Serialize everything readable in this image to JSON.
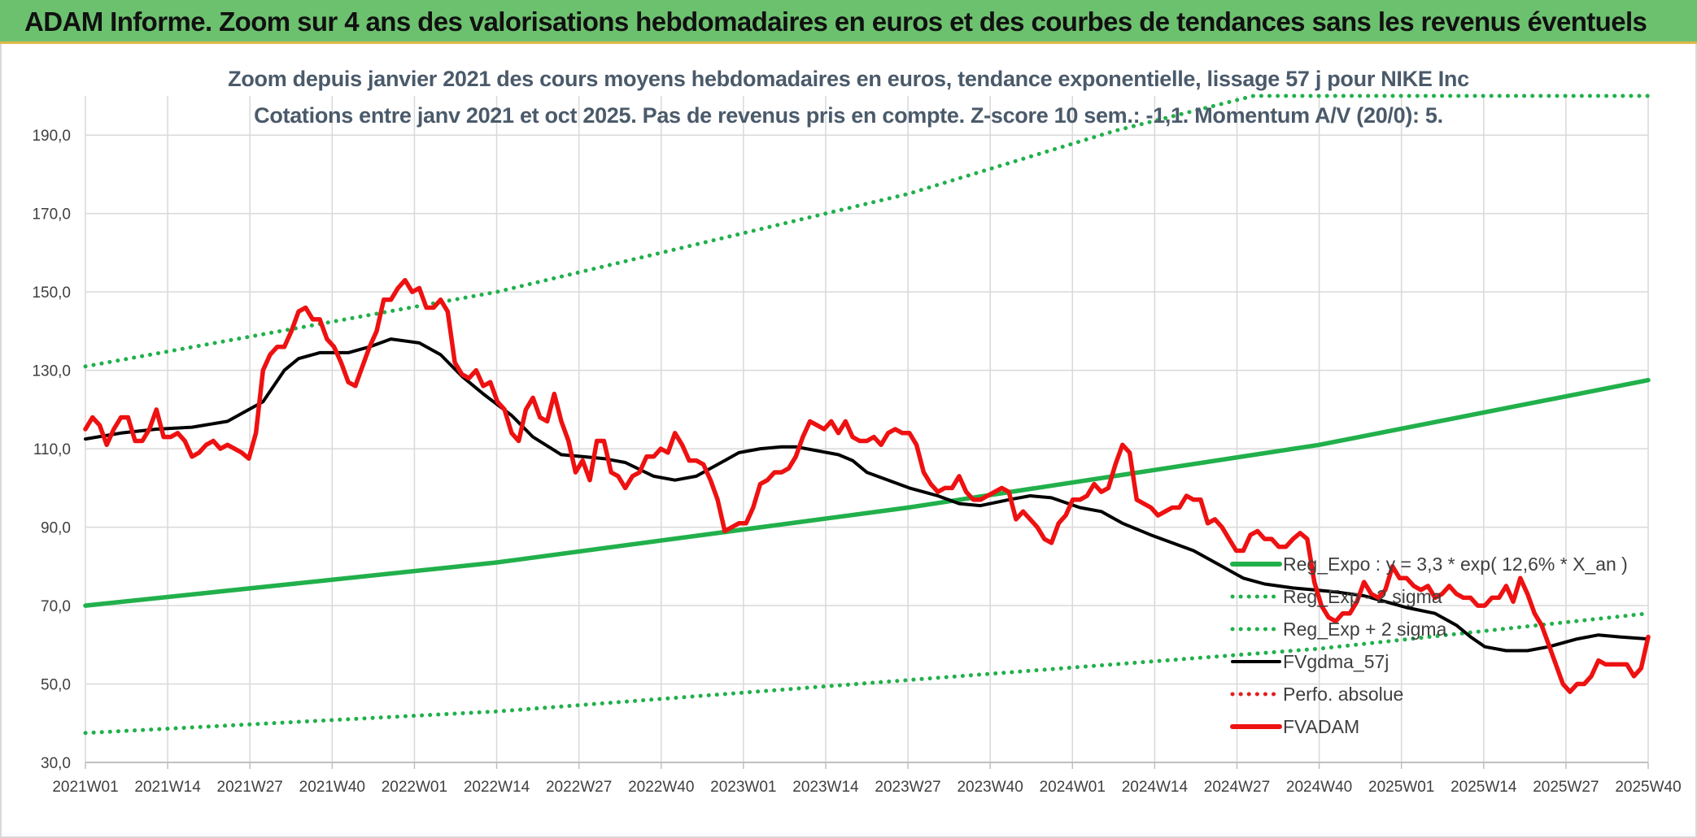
{
  "header": {
    "title": "ADAM Informe. Zoom sur 4 ans des valorisations hebdomadaires en euros et des courbes de tendances sans les revenus éventuels"
  },
  "chart_data": {
    "type": "line",
    "title_line1": "Zoom depuis janvier 2021 des cours moyens hebdomadaires en euros, tendance exponentielle, lissage 57 j pour NIKE Inc",
    "title_line2": "Cotations entre janv 2021 et oct 2025. Pas de revenus pris en compte. Z-score 10 sem.: -1,1. Momentum A/V (20/0): 5.",
    "ylim": [
      30,
      200
    ],
    "y_ticks": [
      "30,0",
      "50,0",
      "70,0",
      "90,0",
      "110,0",
      "130,0",
      "150,0",
      "170,0",
      "190,0"
    ],
    "y_tick_values": [
      30,
      50,
      70,
      90,
      110,
      130,
      150,
      170,
      190
    ],
    "categories": [
      "2021W01",
      "2021W14",
      "2021W27",
      "2021W40",
      "2022W01",
      "2022W14",
      "2022W27",
      "2022W40",
      "2023W01",
      "2023W14",
      "2023W27",
      "2023W40",
      "2024W01",
      "2024W14",
      "2024W27",
      "2024W40",
      "2025W01",
      "2025W14",
      "2025W27",
      "2025W40"
    ],
    "grid": true,
    "legend_position": "center-right",
    "colors": {
      "reg": "#21b04b",
      "fvgdma": "#000000",
      "perfo": "#e32020",
      "fvadam": "#ee1111",
      "grid": "#d9d9d9",
      "axis": "#bfbfbf"
    },
    "series": [
      {
        "name": "Reg_Expo : y = 3,3 * exp( 12,6% *  X_an )",
        "style": "solid-thick",
        "color": "#21b04b",
        "points": [
          [
            0,
            70
          ],
          [
            5,
            81
          ],
          [
            10,
            95
          ],
          [
            15,
            111
          ],
          [
            19,
            127.5
          ]
        ]
      },
      {
        "name": "Reg_Exp - 2 sigma",
        "style": "dotted",
        "color": "#21b04b",
        "points": [
          [
            0,
            37.5
          ],
          [
            5,
            43
          ],
          [
            10,
            51
          ],
          [
            15,
            59
          ],
          [
            19,
            68
          ]
        ]
      },
      {
        "name": "Reg_Exp + 2 sigma",
        "style": "dotted",
        "color": "#21b04b",
        "points": [
          [
            0,
            131
          ],
          [
            5,
            150
          ],
          [
            10,
            175
          ],
          [
            12.5,
            191
          ],
          [
            14.2,
            200
          ],
          [
            19,
            200
          ]
        ]
      },
      {
        "name": "FVgdma_57j",
        "style": "solid",
        "color": "#000000",
        "points": [
          [
            0,
            112.5
          ],
          [
            0.5,
            114
          ],
          [
            1,
            115
          ],
          [
            1.5,
            115.5
          ],
          [
            2,
            117
          ],
          [
            2.5,
            122
          ],
          [
            2.8,
            130
          ],
          [
            3,
            133
          ],
          [
            3.3,
            134.5
          ],
          [
            3.7,
            134.5
          ],
          [
            4,
            136
          ],
          [
            4.3,
            138
          ],
          [
            4.7,
            137
          ],
          [
            5,
            134
          ],
          [
            5.3,
            128.5
          ],
          [
            5.6,
            124
          ],
          [
            6,
            118.5
          ],
          [
            6.3,
            113
          ],
          [
            6.7,
            108.5
          ],
          [
            7,
            108
          ],
          [
            7.3,
            107.5
          ],
          [
            7.6,
            106.5
          ],
          [
            8,
            103
          ],
          [
            8.3,
            102
          ],
          [
            8.6,
            103
          ],
          [
            9,
            107
          ],
          [
            9.2,
            109
          ],
          [
            9.5,
            110
          ],
          [
            9.8,
            110.5
          ],
          [
            10,
            110.5
          ],
          [
            10.3,
            109.5
          ],
          [
            10.6,
            108.5
          ],
          [
            10.8,
            107
          ],
          [
            11,
            104
          ],
          [
            11.3,
            102
          ],
          [
            11.6,
            100
          ],
          [
            12,
            98
          ],
          [
            12.3,
            96
          ],
          [
            12.6,
            95.5
          ],
          [
            13,
            97
          ],
          [
            13.3,
            98
          ],
          [
            13.6,
            97.5
          ],
          [
            14,
            95
          ],
          [
            14.3,
            94
          ],
          [
            14.6,
            91
          ],
          [
            15,
            88
          ],
          [
            15.3,
            86
          ],
          [
            15.6,
            84
          ],
          [
            16,
            80
          ],
          [
            16.3,
            77
          ],
          [
            16.6,
            75.5
          ],
          [
            17,
            74.5
          ],
          [
            17.3,
            74
          ],
          [
            17.6,
            73.5
          ],
          [
            18,
            72.5
          ],
          [
            18.3,
            71
          ],
          [
            18.6,
            69.5
          ],
          [
            19,
            68
          ],
          [
            19.3,
            65
          ],
          [
            19.5,
            62
          ],
          [
            19.7,
            59.5
          ],
          [
            20,
            58.5
          ],
          [
            20.3,
            58.5
          ],
          [
            20.6,
            59.5
          ],
          [
            21,
            61.5
          ],
          [
            21.3,
            62.5
          ],
          [
            21.6,
            62
          ],
          [
            22,
            61.5
          ]
        ]
      },
      {
        "name": "Perfo. absolue",
        "style": "dotted",
        "color": "#e32020",
        "points": []
      },
      {
        "name": "FVADAM",
        "style": "solid-thick",
        "color": "#ee1111",
        "points": [
          [
            0,
            115
          ],
          [
            0.1,
            118
          ],
          [
            0.2,
            116
          ],
          [
            0.3,
            111
          ],
          [
            0.4,
            115
          ],
          [
            0.5,
            118
          ],
          [
            0.6,
            118
          ],
          [
            0.7,
            112
          ],
          [
            0.8,
            112
          ],
          [
            0.9,
            115
          ],
          [
            1,
            120
          ],
          [
            1.1,
            113
          ],
          [
            1.2,
            113
          ],
          [
            1.3,
            114
          ],
          [
            1.4,
            112
          ],
          [
            1.5,
            108
          ],
          [
            1.6,
            109
          ],
          [
            1.7,
            111
          ],
          [
            1.8,
            112
          ],
          [
            1.9,
            110
          ],
          [
            2,
            111
          ],
          [
            2.1,
            110
          ],
          [
            2.2,
            109
          ],
          [
            2.3,
            107.5
          ],
          [
            2.4,
            114
          ],
          [
            2.5,
            130
          ],
          [
            2.6,
            134
          ],
          [
            2.7,
            136
          ],
          [
            2.8,
            136
          ],
          [
            2.9,
            140
          ],
          [
            3,
            145
          ],
          [
            3.1,
            146
          ],
          [
            3.2,
            143
          ],
          [
            3.3,
            143
          ],
          [
            3.4,
            138
          ],
          [
            3.5,
            136
          ],
          [
            3.6,
            132
          ],
          [
            3.7,
            127
          ],
          [
            3.8,
            126
          ],
          [
            3.9,
            131
          ],
          [
            4,
            136
          ],
          [
            4.1,
            140
          ],
          [
            4.2,
            148
          ],
          [
            4.3,
            148
          ],
          [
            4.4,
            151
          ],
          [
            4.5,
            153
          ],
          [
            4.6,
            150
          ],
          [
            4.7,
            151
          ],
          [
            4.8,
            146
          ],
          [
            4.9,
            146
          ],
          [
            5,
            148
          ],
          [
            5.1,
            145
          ],
          [
            5.2,
            132
          ],
          [
            5.3,
            129
          ],
          [
            5.4,
            128
          ],
          [
            5.5,
            130
          ],
          [
            5.6,
            126
          ],
          [
            5.7,
            127
          ],
          [
            5.8,
            122
          ],
          [
            5.9,
            120
          ],
          [
            6,
            114
          ],
          [
            6.1,
            112
          ],
          [
            6.2,
            120
          ],
          [
            6.3,
            123
          ],
          [
            6.4,
            118
          ],
          [
            6.5,
            117
          ],
          [
            6.6,
            124
          ],
          [
            6.7,
            117
          ],
          [
            6.8,
            112
          ],
          [
            6.9,
            104
          ],
          [
            7,
            107
          ],
          [
            7.1,
            102
          ],
          [
            7.2,
            112
          ],
          [
            7.3,
            112
          ],
          [
            7.4,
            104
          ],
          [
            7.5,
            103
          ],
          [
            7.6,
            100
          ],
          [
            7.7,
            103
          ],
          [
            7.8,
            104
          ],
          [
            7.9,
            108
          ],
          [
            8,
            108
          ],
          [
            8.1,
            110
          ],
          [
            8.2,
            109
          ],
          [
            8.3,
            114
          ],
          [
            8.4,
            111
          ],
          [
            8.5,
            107
          ],
          [
            8.6,
            107
          ],
          [
            8.7,
            106
          ],
          [
            8.8,
            102
          ],
          [
            8.9,
            97
          ],
          [
            9,
            89
          ],
          [
            9.1,
            90
          ],
          [
            9.2,
            91
          ],
          [
            9.3,
            91
          ],
          [
            9.4,
            95
          ],
          [
            9.5,
            101
          ],
          [
            9.6,
            102
          ],
          [
            9.7,
            104
          ],
          [
            9.8,
            104
          ],
          [
            9.9,
            105
          ],
          [
            10,
            108
          ],
          [
            10.1,
            113
          ],
          [
            10.2,
            117
          ],
          [
            10.3,
            116
          ],
          [
            10.4,
            115
          ],
          [
            10.5,
            117
          ],
          [
            10.6,
            114
          ],
          [
            10.7,
            117
          ],
          [
            10.8,
            113
          ],
          [
            10.9,
            112
          ],
          [
            11,
            112
          ],
          [
            11.1,
            113
          ],
          [
            11.2,
            111
          ],
          [
            11.3,
            114
          ],
          [
            11.4,
            115
          ],
          [
            11.5,
            114
          ],
          [
            11.6,
            114
          ],
          [
            11.7,
            111
          ],
          [
            11.8,
            104
          ],
          [
            11.9,
            101
          ],
          [
            12,
            99
          ],
          [
            12.1,
            100
          ],
          [
            12.2,
            100
          ],
          [
            12.3,
            103
          ],
          [
            12.4,
            99
          ],
          [
            12.5,
            97
          ],
          [
            12.6,
            97
          ],
          [
            12.7,
            98
          ],
          [
            12.8,
            99
          ],
          [
            12.9,
            100
          ],
          [
            13,
            99
          ],
          [
            13.1,
            92
          ],
          [
            13.2,
            94
          ],
          [
            13.3,
            92
          ],
          [
            13.4,
            90
          ],
          [
            13.5,
            87
          ],
          [
            13.6,
            86
          ],
          [
            13.7,
            91
          ],
          [
            13.8,
            93
          ],
          [
            13.9,
            97
          ],
          [
            14,
            97
          ],
          [
            14.1,
            98
          ],
          [
            14.2,
            101
          ],
          [
            14.3,
            99
          ],
          [
            14.4,
            100
          ],
          [
            14.5,
            106
          ],
          [
            14.6,
            111
          ],
          [
            14.7,
            109
          ],
          [
            14.8,
            97
          ],
          [
            14.9,
            96
          ],
          [
            15,
            95
          ],
          [
            15.1,
            93
          ],
          [
            15.2,
            94
          ],
          [
            15.3,
            95
          ],
          [
            15.4,
            95
          ],
          [
            15.5,
            98
          ],
          [
            15.6,
            97
          ],
          [
            15.7,
            97
          ],
          [
            15.8,
            91
          ],
          [
            15.9,
            92
          ],
          [
            16,
            90
          ],
          [
            16.1,
            87
          ],
          [
            16.2,
            84
          ],
          [
            16.3,
            84
          ],
          [
            16.4,
            88
          ],
          [
            16.5,
            89
          ],
          [
            16.6,
            87
          ],
          [
            16.7,
            87
          ],
          [
            16.8,
            85
          ],
          [
            16.9,
            85
          ],
          [
            17,
            87
          ],
          [
            17.1,
            88.5
          ],
          [
            17.2,
            87
          ],
          [
            17.3,
            76
          ],
          [
            17.4,
            70
          ],
          [
            17.5,
            67
          ],
          [
            17.6,
            66
          ],
          [
            17.7,
            68
          ],
          [
            17.8,
            68
          ],
          [
            17.9,
            71
          ],
          [
            18,
            76
          ],
          [
            18.1,
            73
          ],
          [
            18.2,
            72
          ],
          [
            18.3,
            74
          ],
          [
            18.4,
            80
          ],
          [
            18.5,
            77
          ],
          [
            18.6,
            77
          ],
          [
            18.7,
            75
          ],
          [
            18.8,
            74
          ],
          [
            18.9,
            75
          ],
          [
            19,
            72
          ],
          [
            19.1,
            73
          ],
          [
            19.2,
            75
          ],
          [
            19.3,
            73
          ],
          [
            19.4,
            72
          ],
          [
            19.5,
            72
          ],
          [
            19.6,
            70
          ],
          [
            19.7,
            70
          ],
          [
            19.8,
            72
          ],
          [
            19.9,
            72
          ],
          [
            20,
            75
          ],
          [
            20.1,
            71
          ],
          [
            20.2,
            77
          ],
          [
            20.3,
            73
          ],
          [
            20.4,
            68
          ],
          [
            20.5,
            65
          ],
          [
            20.6,
            60
          ],
          [
            20.7,
            55
          ],
          [
            20.8,
            50
          ],
          [
            20.9,
            48
          ],
          [
            21,
            50
          ],
          [
            21.1,
            50
          ],
          [
            21.2,
            52
          ],
          [
            21.3,
            56
          ],
          [
            21.4,
            55
          ],
          [
            21.5,
            55
          ],
          [
            21.6,
            55
          ],
          [
            21.7,
            55
          ],
          [
            21.8,
            52
          ],
          [
            21.9,
            54
          ],
          [
            22,
            62
          ]
        ]
      }
    ]
  }
}
